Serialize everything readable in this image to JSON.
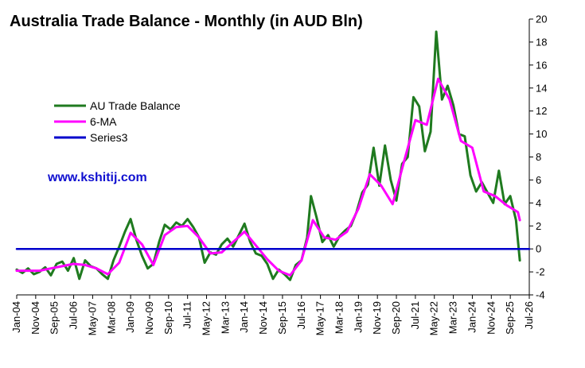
{
  "chart_data": {
    "type": "line",
    "title": "Australia Trade Balance - Monthly (in AUD Bln)",
    "watermark": "www.kshitij.com",
    "xlabel": "",
    "ylabel": "",
    "ylim": [
      -4,
      20
    ],
    "yticks": [
      -4,
      -2,
      0,
      2,
      4,
      6,
      8,
      10,
      12,
      14,
      16,
      18,
      20
    ],
    "y_axis_side": "right",
    "x_domain": [
      "2004-01",
      "2026-07"
    ],
    "xtick_labels": [
      "Jan-04",
      "Nov-04",
      "Sep-05",
      "Jul-06",
      "May-07",
      "Mar-08",
      "Jan-09",
      "Nov-09",
      "Sep-10",
      "Jul-11",
      "May-12",
      "Mar-13",
      "Jan-14",
      "Nov-14",
      "Sep-15",
      "Jul-16",
      "May-17",
      "Mar-18",
      "Jan-19",
      "Nov-19",
      "Sep-20",
      "Jul-21",
      "May-22",
      "Mar-23",
      "Jan-24",
      "Nov-24",
      "Sep-25",
      "Jul-26"
    ],
    "grid": false,
    "legend_placement": "left, upper-middle",
    "series": [
      {
        "name": "AU Trade Balance",
        "color": "#1f7a1f",
        "points": [
          [
            "2004-01",
            -1.8
          ],
          [
            "2004-04",
            -2.1
          ],
          [
            "2004-07",
            -1.7
          ],
          [
            "2004-10",
            -2.2
          ],
          [
            "2005-01",
            -2.0
          ],
          [
            "2005-04",
            -1.6
          ],
          [
            "2005-07",
            -2.3
          ],
          [
            "2005-10",
            -1.3
          ],
          [
            "2006-01",
            -1.1
          ],
          [
            "2006-04",
            -1.9
          ],
          [
            "2006-07",
            -0.8
          ],
          [
            "2006-10",
            -2.6
          ],
          [
            "2007-01",
            -1.0
          ],
          [
            "2007-04",
            -1.5
          ],
          [
            "2007-07",
            -1.7
          ],
          [
            "2007-10",
            -2.2
          ],
          [
            "2008-01",
            -2.6
          ],
          [
            "2008-04",
            -1.0
          ],
          [
            "2008-07",
            0.2
          ],
          [
            "2008-10",
            1.5
          ],
          [
            "2009-01",
            2.6
          ],
          [
            "2009-04",
            0.8
          ],
          [
            "2009-07",
            -0.6
          ],
          [
            "2009-10",
            -1.7
          ],
          [
            "2010-01",
            -1.3
          ],
          [
            "2010-04",
            0.6
          ],
          [
            "2010-07",
            2.1
          ],
          [
            "2010-10",
            1.7
          ],
          [
            "2011-01",
            2.3
          ],
          [
            "2011-04",
            2.0
          ],
          [
            "2011-07",
            2.6
          ],
          [
            "2011-10",
            1.9
          ],
          [
            "2012-01",
            1.0
          ],
          [
            "2012-04",
            -1.2
          ],
          [
            "2012-07",
            -0.3
          ],
          [
            "2012-10",
            -0.5
          ],
          [
            "2013-01",
            0.4
          ],
          [
            "2013-04",
            0.9
          ],
          [
            "2013-07",
            0.2
          ],
          [
            "2013-10",
            1.2
          ],
          [
            "2014-01",
            2.2
          ],
          [
            "2014-04",
            0.6
          ],
          [
            "2014-07",
            -0.4
          ],
          [
            "2014-10",
            -0.6
          ],
          [
            "2015-01",
            -1.3
          ],
          [
            "2015-04",
            -2.6
          ],
          [
            "2015-07",
            -1.8
          ],
          [
            "2015-10",
            -2.2
          ],
          [
            "2016-01",
            -2.7
          ],
          [
            "2016-04",
            -1.4
          ],
          [
            "2016-07",
            -1.0
          ],
          [
            "2016-10",
            1.0
          ],
          [
            "2016-12",
            4.6
          ],
          [
            "2017-03",
            2.7
          ],
          [
            "2017-06",
            0.6
          ],
          [
            "2017-09",
            1.2
          ],
          [
            "2017-12",
            0.2
          ],
          [
            "2018-03",
            1.1
          ],
          [
            "2018-06",
            1.6
          ],
          [
            "2018-09",
            2.0
          ],
          [
            "2018-12",
            3.2
          ],
          [
            "2019-03",
            4.9
          ],
          [
            "2019-06",
            5.6
          ],
          [
            "2019-09",
            8.8
          ],
          [
            "2019-12",
            5.5
          ],
          [
            "2020-03",
            9.0
          ],
          [
            "2020-06",
            6.0
          ],
          [
            "2020-09",
            4.2
          ],
          [
            "2020-12",
            7.4
          ],
          [
            "2021-03",
            8.0
          ],
          [
            "2021-06",
            13.2
          ],
          [
            "2021-09",
            12.4
          ],
          [
            "2021-12",
            8.5
          ],
          [
            "2022-03",
            10.2
          ],
          [
            "2022-06",
            18.9
          ],
          [
            "2022-09",
            13.0
          ],
          [
            "2022-12",
            14.2
          ],
          [
            "2023-03",
            12.5
          ],
          [
            "2023-06",
            10.0
          ],
          [
            "2023-09",
            9.8
          ],
          [
            "2023-12",
            6.4
          ],
          [
            "2024-03",
            5.0
          ],
          [
            "2024-06",
            5.8
          ],
          [
            "2024-09",
            4.9
          ],
          [
            "2024-12",
            4.0
          ],
          [
            "2025-03",
            6.8
          ],
          [
            "2025-06",
            3.9
          ],
          [
            "2025-09",
            4.6
          ],
          [
            "2025-12",
            2.5
          ],
          [
            "2026-02",
            -1.0
          ]
        ]
      },
      {
        "name": "6-MA",
        "color": "#ff00ff",
        "points": [
          [
            "2004-01",
            -1.9
          ],
          [
            "2004-07",
            -1.9
          ],
          [
            "2005-01",
            -1.9
          ],
          [
            "2005-07",
            -1.7
          ],
          [
            "2006-01",
            -1.5
          ],
          [
            "2006-07",
            -1.3
          ],
          [
            "2007-01",
            -1.4
          ],
          [
            "2007-07",
            -1.7
          ],
          [
            "2008-01",
            -2.2
          ],
          [
            "2008-07",
            -1.2
          ],
          [
            "2009-01",
            1.4
          ],
          [
            "2009-07",
            0.4
          ],
          [
            "2010-01",
            -1.4
          ],
          [
            "2010-07",
            1.2
          ],
          [
            "2011-01",
            1.9
          ],
          [
            "2011-07",
            2.0
          ],
          [
            "2012-01",
            1.0
          ],
          [
            "2012-07",
            -0.4
          ],
          [
            "2013-01",
            -0.3
          ],
          [
            "2013-07",
            0.6
          ],
          [
            "2014-01",
            1.5
          ],
          [
            "2014-07",
            0.3
          ],
          [
            "2015-01",
            -0.9
          ],
          [
            "2015-07",
            -1.9
          ],
          [
            "2016-01",
            -2.3
          ],
          [
            "2016-07",
            -1.0
          ],
          [
            "2017-01",
            2.5
          ],
          [
            "2017-07",
            1.0
          ],
          [
            "2018-01",
            0.8
          ],
          [
            "2018-07",
            1.5
          ],
          [
            "2019-01",
            3.5
          ],
          [
            "2019-07",
            6.5
          ],
          [
            "2020-01",
            5.5
          ],
          [
            "2020-07",
            3.9
          ],
          [
            "2021-01",
            7.6
          ],
          [
            "2021-07",
            11.2
          ],
          [
            "2022-01",
            10.8
          ],
          [
            "2022-07",
            14.8
          ],
          [
            "2023-01",
            13.0
          ],
          [
            "2023-07",
            9.4
          ],
          [
            "2024-01",
            8.8
          ],
          [
            "2024-07",
            5.0
          ],
          [
            "2025-01",
            4.6
          ],
          [
            "2025-07",
            3.8
          ],
          [
            "2026-01",
            3.2
          ],
          [
            "2026-02",
            2.5
          ]
        ]
      },
      {
        "name": "Series3",
        "color": "#0000cc",
        "points": [
          [
            "2004-01",
            0
          ],
          [
            "2026-07",
            0
          ]
        ]
      }
    ]
  }
}
